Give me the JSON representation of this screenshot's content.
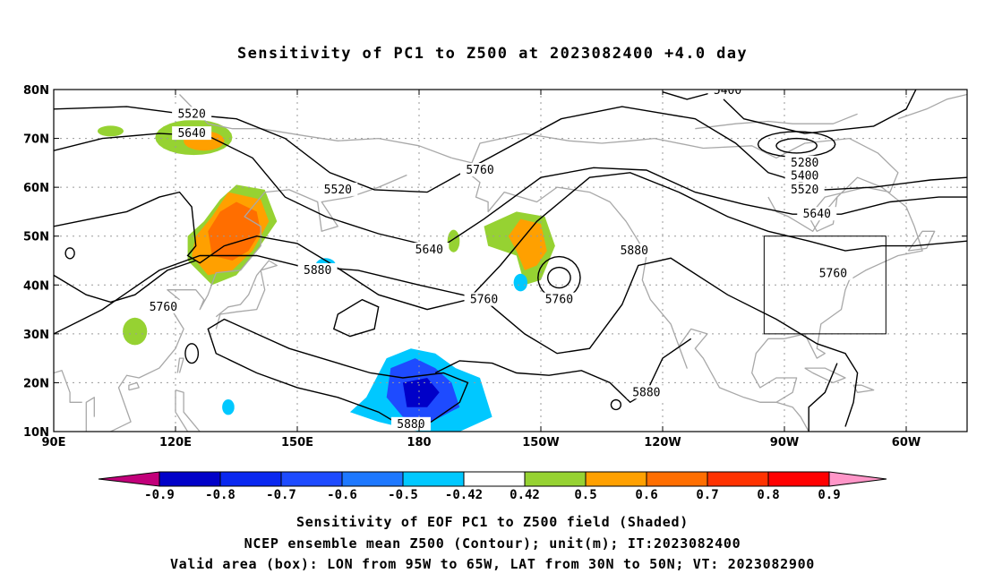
{
  "title": "Sensitivity of PC1 to Z500 at 2023082400 +4.0 day",
  "map": {
    "lon_labels": [
      "90E",
      "120E",
      "150E",
      "180",
      "150W",
      "120W",
      "90W",
      "60W"
    ],
    "lat_labels": [
      "80N",
      "70N",
      "60N",
      "50N",
      "40N",
      "30N",
      "20N",
      "10N"
    ],
    "contour_labels": [
      {
        "text": "5400",
        "lon": 256,
        "lat": 79.8
      },
      {
        "text": "5520",
        "lon": 124,
        "lat": 75
      },
      {
        "text": "5640",
        "lon": 124,
        "lat": 71
      },
      {
        "text": "5280",
        "lon": 275,
        "lat": 65
      },
      {
        "text": "5400",
        "lon": 275,
        "lat": 62.3
      },
      {
        "text": "5520",
        "lon": 275,
        "lat": 59.5
      },
      {
        "text": "5760",
        "lon": 195,
        "lat": 63.5
      },
      {
        "text": "5520",
        "lon": 160,
        "lat": 59.5
      },
      {
        "text": "5640",
        "lon": 278,
        "lat": 54.5
      },
      {
        "text": "5880",
        "lon": 233,
        "lat": 47
      },
      {
        "text": "5640",
        "lon": 182.5,
        "lat": 47.2
      },
      {
        "text": "5880",
        "lon": 155,
        "lat": 43
      },
      {
        "text": "5760",
        "lon": 282,
        "lat": 42.3
      },
      {
        "text": "5760",
        "lon": 117,
        "lat": 35.5
      },
      {
        "text": "5760",
        "lon": 196,
        "lat": 37
      },
      {
        "text": "5760",
        "lon": 214.5,
        "lat": 37
      },
      {
        "text": "5880",
        "lon": 236,
        "lat": 18
      },
      {
        "text": "5880",
        "lon": 178,
        "lat": 11.5
      }
    ],
    "valid_box": {
      "lon_west": -95,
      "lon_east": -65,
      "lat_south": 30,
      "lat_north": 50
    }
  },
  "colorbar": {
    "labels": [
      "-0.9",
      "-0.8",
      "-0.7",
      "-0.6",
      "-0.5",
      "-0.42",
      "0.42",
      "0.5",
      "0.6",
      "0.7",
      "0.8",
      "0.9"
    ],
    "colors": [
      "#c2007a",
      "#0000c8",
      "#0a28f0",
      "#1e4bff",
      "#1e78ff",
      "#00c8ff",
      "#ffffff",
      "#96d232",
      "#ffa000",
      "#ff6e00",
      "#ff3200",
      "#ff0000",
      "#ff96c8"
    ]
  },
  "captions": [
    "Sensitivity of EOF PC1 to Z500 field (Shaded)",
    "NCEP ensemble mean Z500 (Contour); unit(m); IT:2023082400",
    "Valid area (box): LON from 95W to 65W, LAT from 30N to 50N; VT: 2023082900"
  ]
}
